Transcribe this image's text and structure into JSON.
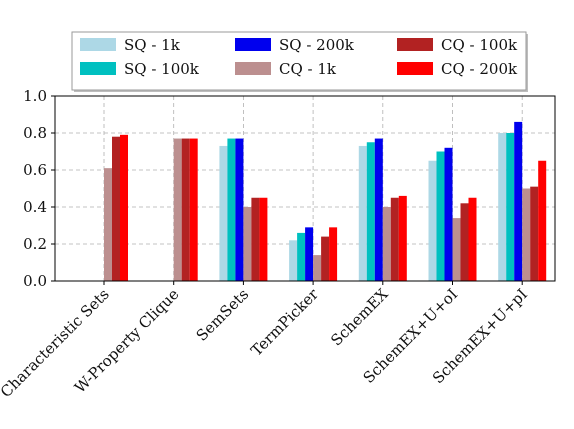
{
  "chart_data": {
    "type": "bar",
    "title": "",
    "xlabel": "",
    "ylabel": "",
    "ylim": [
      0.0,
      1.0
    ],
    "yticks": [
      "0.0",
      "0.2",
      "0.4",
      "0.6",
      "0.8",
      "1.0"
    ],
    "grid": true,
    "legend_position": "top",
    "categories": [
      "Characteristic Sets",
      "W-Property Clique",
      "SemSets",
      "TermPicker",
      "SchemEX",
      "SchemEX+U+oI",
      "SchemEX+U+pI"
    ],
    "series": [
      {
        "name": "SQ - 1k",
        "color": "#add8e6",
        "values": [
          0,
          0,
          0.73,
          0.22,
          0.73,
          0.65,
          0.8
        ]
      },
      {
        "name": "SQ - 100k",
        "color": "#00c0c0",
        "values": [
          0,
          0,
          0.77,
          0.26,
          0.75,
          0.7,
          0.8
        ]
      },
      {
        "name": "SQ - 200k",
        "color": "#0000ee",
        "values": [
          0,
          0,
          0.77,
          0.29,
          0.77,
          0.72,
          0.86
        ]
      },
      {
        "name": "CQ - 1k",
        "color": "#bc8f8f",
        "values": [
          0.61,
          0.77,
          0.4,
          0.14,
          0.4,
          0.34,
          0.5
        ]
      },
      {
        "name": "CQ - 100k",
        "color": "#b22222",
        "values": [
          0.78,
          0.77,
          0.45,
          0.24,
          0.45,
          0.42,
          0.51
        ]
      },
      {
        "name": "CQ - 200k",
        "color": "#ff0000",
        "values": [
          0.79,
          0.77,
          0.45,
          0.29,
          0.46,
          0.45,
          0.65
        ]
      }
    ]
  }
}
